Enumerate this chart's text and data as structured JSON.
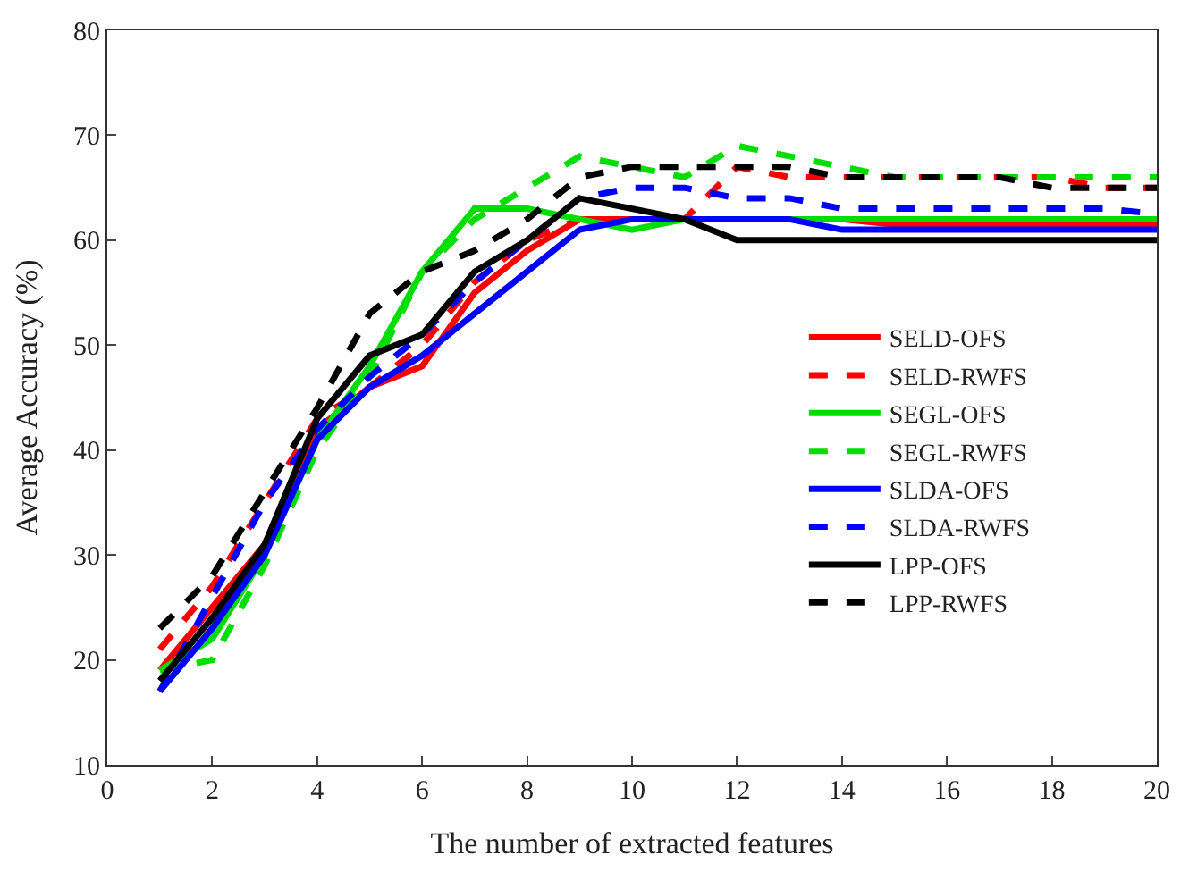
{
  "chart_data": {
    "type": "line",
    "xlabel": "The number of extracted features",
    "ylabel": "Average Accuracy (%)",
    "x": [
      1,
      2,
      3,
      4,
      5,
      6,
      7,
      8,
      9,
      10,
      11,
      12,
      13,
      14,
      15,
      16,
      17,
      18,
      19,
      20
    ],
    "xlim": [
      0,
      20
    ],
    "xticks": [
      0,
      2,
      4,
      6,
      8,
      10,
      12,
      14,
      16,
      18,
      20
    ],
    "ylim": [
      10,
      80
    ],
    "yticks": [
      10,
      20,
      30,
      40,
      50,
      60,
      70,
      80
    ],
    "legend": "right",
    "marker": "none",
    "series": [
      {
        "name": "SELD-OFS",
        "color": "#ff0000",
        "line_style": "solid",
        "values": [
          19,
          25,
          31,
          42,
          46,
          48,
          55,
          59,
          62,
          62,
          62,
          62,
          62,
          62,
          61.5,
          61.5,
          61.5,
          61.5,
          61.5,
          61.5
        ]
      },
      {
        "name": "SELD-RWFS",
        "color": "#ff0000",
        "line_style": "dashed",
        "values": [
          21,
          27,
          35,
          43,
          46,
          50,
          56,
          60,
          62,
          62,
          62,
          67,
          66,
          66,
          66,
          66,
          66,
          66,
          65,
          65
        ]
      },
      {
        "name": "SEGL-OFS",
        "color": "#00dd00",
        "line_style": "solid",
        "values": [
          19,
          22,
          30,
          41,
          48,
          57,
          63,
          63,
          62,
          61,
          62,
          62,
          62,
          62,
          62,
          62,
          62,
          62,
          62,
          62
        ]
      },
      {
        "name": "SEGL-RWFS",
        "color": "#00dd00",
        "line_style": "dashed",
        "values": [
          19,
          20,
          29,
          40,
          47,
          57,
          62,
          65,
          68,
          67,
          66,
          69,
          68,
          67,
          66,
          66,
          66,
          66,
          66,
          66
        ]
      },
      {
        "name": "SLDA-OFS",
        "color": "#0000ff",
        "line_style": "solid",
        "values": [
          17,
          23,
          30,
          41,
          46,
          49,
          53,
          57,
          61,
          62,
          62,
          62,
          62,
          61,
          61,
          61,
          61,
          61,
          61,
          61
        ]
      },
      {
        "name": "SLDA-RWFS",
        "color": "#0000ff",
        "line_style": "dashed",
        "values": [
          17,
          26,
          35,
          42,
          47,
          51,
          56,
          60,
          64,
          65,
          65,
          64,
          64,
          63,
          63,
          63,
          63,
          63,
          63,
          62.5
        ]
      },
      {
        "name": "LPP-OFS",
        "color": "#000000",
        "line_style": "solid",
        "values": [
          18,
          24,
          31,
          43,
          49,
          51,
          57,
          60,
          64,
          63,
          62,
          60,
          60,
          60,
          60,
          60,
          60,
          60,
          60,
          60
        ]
      },
      {
        "name": "LPP-RWFS",
        "color": "#000000",
        "line_style": "dashed",
        "values": [
          23,
          28,
          36,
          44,
          53,
          57,
          59,
          62,
          66,
          67,
          67,
          67,
          67,
          66,
          66,
          66,
          66,
          65,
          65,
          65
        ]
      }
    ]
  }
}
